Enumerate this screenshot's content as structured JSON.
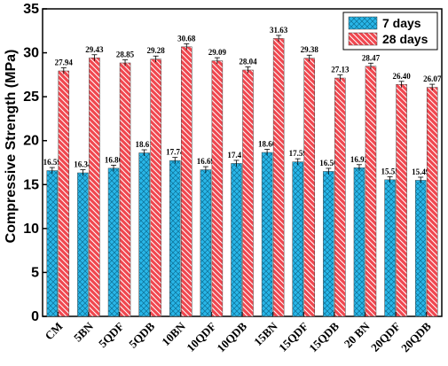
{
  "chart_data": {
    "type": "bar",
    "categories": [
      "CM",
      "5BN",
      "5QDF",
      "5QDB",
      "10BN",
      "10QDF",
      "10QDB",
      "15BN",
      "15QDF",
      "15QDB",
      "20 BN",
      "20QDF",
      "20QDB"
    ],
    "series": [
      {
        "name": "7 days",
        "values": [
          16.59,
          16.34,
          16.86,
          18.61,
          17.74,
          16.69,
          17.41,
          18.66,
          17.59,
          16.5,
          16.92,
          15.55,
          15.49
        ],
        "labels": [
          "16.59",
          "16.34",
          "16.86",
          "18.61",
          "17.74",
          "16.69",
          "17.41",
          "18.66",
          "17.59",
          "16.50",
          "16.92",
          "15.55",
          "15.49"
        ],
        "color": "#29b6e8"
      },
      {
        "name": "28 days",
        "values": [
          27.94,
          29.43,
          28.85,
          29.28,
          30.68,
          29.09,
          28.04,
          31.63,
          29.38,
          27.13,
          28.47,
          26.4,
          26.07
        ],
        "labels": [
          "27.94",
          "29.43",
          "28.85",
          "29.28",
          "30.68",
          "29.09",
          "28.04",
          "31.63",
          "29.38",
          "27.13",
          "28.47",
          "26.40",
          "26.07"
        ],
        "color": "#f0474f"
      }
    ],
    "ylabel": "Compressive Strength (MPa)",
    "xlabel": "",
    "title": "",
    "ylim": [
      0,
      35
    ],
    "yticks": [
      "0",
      "5",
      "10",
      "15",
      "20",
      "25",
      "30",
      "35"
    ],
    "grid": false,
    "legend_position": "top-right",
    "error_bars": true
  }
}
